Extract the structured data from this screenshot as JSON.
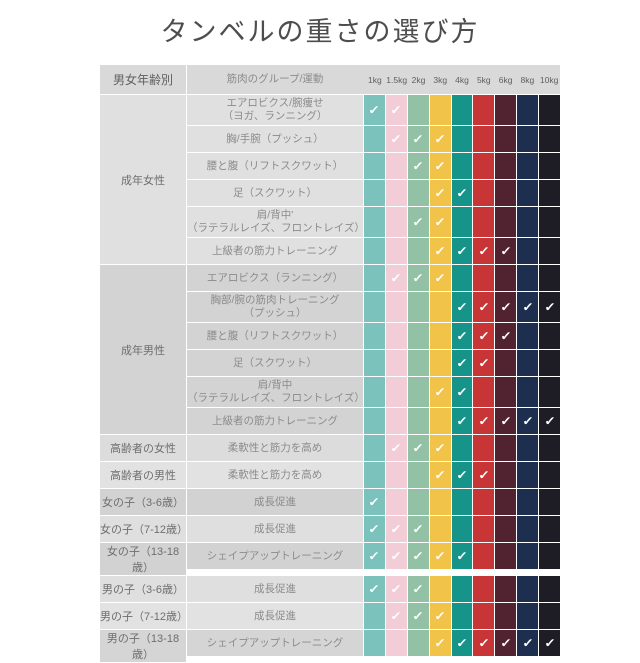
{
  "title": "タンベルの重さの選び方",
  "check_glyph": "✓",
  "colors": {
    "page_bg": "#ffffff",
    "header_bg": "#d9d9d9",
    "title_text": "#4d4d4d",
    "header_text": "#5f5f5f",
    "group_label_text": "#6e6e6e",
    "exercise_text": "#8b8b8b",
    "check": "#ffffff",
    "divider": "#ffffff"
  },
  "chart_data": {
    "type": "table",
    "title": "タンベルの重さの選び方",
    "column_headers": {
      "demographic": "男女年齢別",
      "exercise": "筋肉のグループ/運動"
    },
    "weights": [
      "1kg",
      "1.5kg",
      "2kg",
      "3kg",
      "4kg",
      "5kg",
      "6kg",
      "8kg",
      "10kg"
    ],
    "weight_colors": [
      "#7ac2bb",
      "#f2cdd7",
      "#92c1a6",
      "#f1c348",
      "#17948a",
      "#c83536",
      "#51222f",
      "#1e2e4f",
      "#1e1d25"
    ],
    "groups": [
      {
        "label": "成年女性",
        "band": "#e0e0e0",
        "rows": [
          {
            "exercise": "エアロビクス/腕痩せ\n（ヨガ、ランニング）",
            "checks": [
              1,
              1,
              0,
              0,
              0,
              0,
              0,
              0,
              0
            ]
          },
          {
            "exercise": "胸/手腕（プッシュ）",
            "checks": [
              0,
              1,
              1,
              1,
              0,
              0,
              0,
              0,
              0
            ]
          },
          {
            "exercise": "腰と腹（リフトスクワット）",
            "checks": [
              0,
              0,
              1,
              1,
              0,
              0,
              0,
              0,
              0
            ]
          },
          {
            "exercise": "足（スクワット）",
            "checks": [
              0,
              0,
              0,
              1,
              1,
              0,
              0,
              0,
              0
            ]
          },
          {
            "exercise": "肩/背中'\n（ラテラルレイズ、フロントレイズ）",
            "checks": [
              0,
              0,
              1,
              1,
              0,
              0,
              0,
              0,
              0
            ]
          },
          {
            "exercise": "上級者の筋力トレーニング",
            "checks": [
              0,
              0,
              0,
              1,
              1,
              1,
              1,
              0,
              0
            ]
          }
        ]
      },
      {
        "label": "成年男性",
        "band": "#d3d3d3",
        "rows": [
          {
            "exercise": "エアロビクス（ランニング）",
            "checks": [
              0,
              1,
              1,
              1,
              0,
              0,
              0,
              0,
              0
            ]
          },
          {
            "exercise": "胸部/腕の筋肉トレーニング\n（プッシュ）",
            "checks": [
              0,
              0,
              0,
              0,
              1,
              1,
              1,
              1,
              1
            ]
          },
          {
            "exercise": "腰と腹（リフトスクワット）",
            "checks": [
              0,
              0,
              0,
              0,
              1,
              1,
              1,
              0,
              0
            ]
          },
          {
            "exercise": "足（スクワット）",
            "checks": [
              0,
              0,
              0,
              0,
              1,
              1,
              0,
              0,
              0
            ]
          },
          {
            "exercise": "肩/背中\n（ラテラルレイズ、フロントレイズ）",
            "checks": [
              0,
              0,
              0,
              1,
              1,
              0,
              0,
              0,
              0
            ]
          },
          {
            "exercise": "上級者の筋力トレーニング",
            "checks": [
              0,
              0,
              0,
              0,
              1,
              1,
              1,
              1,
              1
            ]
          }
        ]
      },
      {
        "label": "高齢者の女性",
        "band": "#dcdcdc",
        "rows": [
          {
            "exercise": "柔軟性と筋力を高め",
            "checks": [
              0,
              1,
              1,
              1,
              0,
              0,
              0,
              0,
              0
            ]
          }
        ]
      },
      {
        "label": "高齢者の男性",
        "band": "#e2e2e2",
        "rows": [
          {
            "exercise": "柔軟性と筋力を高め",
            "checks": [
              0,
              0,
              0,
              1,
              1,
              1,
              0,
              0,
              0
            ]
          }
        ]
      },
      {
        "label": "女の子（3-6歳）",
        "band": "#d2d2d2",
        "rows": [
          {
            "exercise": "成長促進",
            "checks": [
              1,
              0,
              0,
              0,
              0,
              0,
              0,
              0,
              0
            ]
          }
        ]
      },
      {
        "label": "女の子（7-12歳）",
        "band": "#dfdfdf",
        "rows": [
          {
            "exercise": "成長促進",
            "checks": [
              1,
              1,
              1,
              0,
              0,
              0,
              0,
              0,
              0
            ]
          }
        ]
      },
      {
        "label": "女の子（13-18歳）",
        "band": "#d2d2d2",
        "rows": [
          {
            "exercise": "シェイプアップトレーニング",
            "checks": [
              1,
              1,
              1,
              1,
              1,
              0,
              0,
              0,
              0
            ]
          }
        ]
      },
      {
        "label": "男の子（3-6歳）",
        "band": "#dfdfdf",
        "rows": [
          {
            "exercise": "成長促進",
            "checks": [
              1,
              1,
              1,
              0,
              0,
              0,
              0,
              0,
              0
            ]
          }
        ]
      },
      {
        "label": "男の子（7-12歳）",
        "band": "#e2e2e2",
        "rows": [
          {
            "exercise": "成長促進",
            "checks": [
              0,
              1,
              1,
              1,
              0,
              0,
              0,
              0,
              0
            ]
          }
        ]
      },
      {
        "label": "男の子（13-18歳）",
        "band": "#d5d5d5",
        "rows": [
          {
            "exercise": "シェイプアップトレーニング",
            "checks": [
              0,
              0,
              0,
              1,
              1,
              1,
              1,
              1,
              1
            ]
          }
        ]
      }
    ]
  }
}
